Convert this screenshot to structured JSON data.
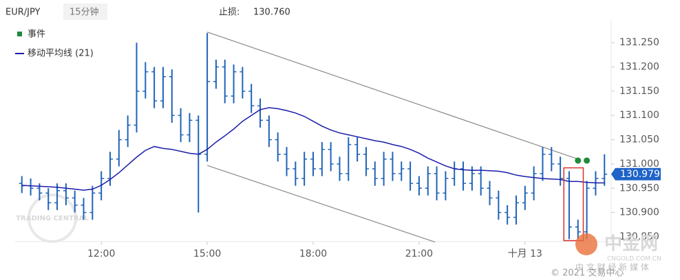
{
  "chart_data": {
    "type": "ohlc",
    "symbol": "EUR/JPY",
    "interval": "15分钟",
    "stop_loss_label": "止损:",
    "stop_loss": "130.760",
    "legend": {
      "events": "事件",
      "ma": "移动平均线 (21)"
    },
    "bar_color": "#1f63b8",
    "ma_color": "#1a1aa8",
    "event_color": "#1e8a3c",
    "channel_color": "#888888",
    "highlight_color": "#d9302c",
    "xlim": [
      9.56,
      26.44
    ],
    "ylim": [
      130.84,
      131.28
    ],
    "xticks": [
      {
        "value": 12,
        "label": "12:00"
      },
      {
        "value": 15,
        "label": "15:00"
      },
      {
        "value": 18,
        "label": "18:00"
      },
      {
        "value": 21,
        "label": "21:00"
      },
      {
        "value": 24,
        "label": "十月 13"
      }
    ],
    "yticks": [
      {
        "value": 130.85,
        "label": "130.850"
      },
      {
        "value": 130.9,
        "label": "130.900"
      },
      {
        "value": 130.95,
        "label": "130.950"
      },
      {
        "value": 131.0,
        "label": "131.000"
      },
      {
        "value": 131.05,
        "label": "131.050"
      },
      {
        "value": 131.1,
        "label": "131.100"
      },
      {
        "value": 131.15,
        "label": "131.150"
      },
      {
        "value": 131.2,
        "label": "131.200"
      },
      {
        "value": 131.25,
        "label": "131.250"
      }
    ],
    "x": [
      9.75,
      10,
      10.25,
      10.5,
      10.75,
      11,
      11.25,
      11.5,
      11.75,
      12,
      12.25,
      12.5,
      12.75,
      13,
      13.25,
      13.5,
      13.75,
      14,
      14.25,
      14.5,
      14.75,
      15,
      15.25,
      15.5,
      15.75,
      16,
      16.25,
      16.5,
      16.75,
      17,
      17.25,
      17.5,
      17.75,
      18,
      18.25,
      18.5,
      18.75,
      19,
      19.25,
      19.5,
      19.75,
      20,
      20.25,
      20.5,
      20.75,
      21,
      21.25,
      21.5,
      21.75,
      22,
      22.25,
      22.5,
      22.75,
      23,
      23.25,
      23.5,
      23.75,
      24,
      24.25,
      24.5,
      24.75,
      25,
      25.25,
      25.5,
      25.75,
      26,
      26.25
    ],
    "open": [
      130.96,
      130.955,
      130.95,
      130.94,
      130.92,
      130.945,
      130.93,
      130.915,
      130.9,
      130.94,
      130.97,
      131.01,
      131.05,
      131.08,
      131.15,
      131.19,
      131.13,
      131.18,
      131.1,
      131.06,
      131.09,
      131.02,
      131.17,
      131.2,
      131.14,
      131.19,
      131.15,
      131.12,
      131.09,
      131.05,
      131.02,
      130.99,
      130.97,
      131.01,
      130.99,
      131.03,
      131.0,
      130.98,
      131.04,
      131.02,
      130.99,
      130.97,
      131.01,
      130.98,
      130.99,
      130.96,
      130.95,
      130.98,
      130.94,
      130.97,
      130.99,
      130.96,
      130.98,
      130.95,
      130.93,
      130.9,
      130.89,
      130.92,
      130.94,
      130.98,
      131.02,
      131.0,
      130.97,
      130.87,
      130.86,
      130.95,
      130.97
    ],
    "high": [
      130.975,
      130.97,
      130.96,
      130.95,
      130.96,
      130.96,
      130.945,
      130.93,
      130.955,
      130.985,
      131.025,
      131.07,
      131.1,
      131.25,
      131.21,
      131.2,
      131.2,
      131.195,
      131.115,
      131.105,
      131.1,
      131.27,
      131.215,
      131.215,
      131.205,
      131.2,
      131.165,
      131.135,
      131.1,
      131.065,
      131.035,
      131.005,
      131.025,
      131.025,
      131.045,
      131.045,
      131.015,
      131.055,
      131.055,
      131.035,
      131.005,
      131.025,
      131.025,
      131.005,
      131.005,
      130.975,
      130.995,
      130.995,
      130.985,
      131.005,
      131.005,
      130.995,
      130.995,
      130.965,
      130.945,
      130.915,
      130.935,
      130.955,
      130.995,
      131.035,
      131.035,
      131.015,
      130.985,
      130.885,
      130.965,
      130.985,
      131.02
    ],
    "low": [
      130.94,
      130.935,
      130.925,
      130.905,
      130.905,
      130.915,
      130.9,
      130.885,
      130.885,
      130.925,
      130.955,
      130.995,
      131.035,
      131.065,
      131.135,
      131.115,
      131.115,
      131.085,
      131.045,
      131.045,
      130.9,
      131.005,
      131.155,
      131.125,
      131.125,
      131.135,
      131.105,
      131.075,
      131.035,
      131.005,
      130.975,
      130.955,
      130.955,
      130.975,
      130.975,
      130.985,
      130.965,
      130.965,
      131.005,
      130.975,
      130.955,
      130.955,
      130.965,
      130.965,
      130.945,
      130.935,
      130.935,
      130.925,
      130.925,
      130.955,
      130.945,
      130.945,
      130.935,
      130.915,
      130.885,
      130.875,
      130.875,
      130.905,
      130.925,
      130.965,
      130.985,
      130.955,
      130.845,
      130.845,
      130.845,
      130.935,
      130.955
    ],
    "close": [
      130.955,
      130.95,
      130.94,
      130.92,
      130.945,
      130.93,
      130.915,
      130.9,
      130.94,
      130.97,
      131.01,
      131.05,
      131.08,
      131.15,
      131.19,
      131.13,
      131.18,
      131.1,
      131.06,
      131.09,
      131.02,
      131.17,
      131.2,
      131.14,
      131.19,
      131.15,
      131.12,
      131.09,
      131.05,
      131.02,
      130.99,
      130.97,
      131.01,
      130.99,
      131.03,
      131.0,
      130.98,
      131.04,
      131.02,
      130.99,
      130.97,
      131.01,
      130.98,
      130.99,
      130.96,
      130.95,
      130.98,
      130.94,
      130.97,
      130.99,
      130.96,
      130.98,
      130.95,
      130.93,
      130.9,
      130.89,
      130.92,
      130.94,
      130.98,
      131.02,
      131.0,
      130.97,
      130.87,
      130.86,
      130.95,
      130.97,
      130.979
    ],
    "ma": [
      130.956,
      130.955,
      130.954,
      130.953,
      130.952,
      130.95,
      130.948,
      130.946,
      130.948,
      130.956,
      130.968,
      130.982,
      130.998,
      131.014,
      131.028,
      131.036,
      131.032,
      131.03,
      131.026,
      131.022,
      131.02,
      131.03,
      131.045,
      131.058,
      131.072,
      131.088,
      131.1,
      131.112,
      131.116,
      131.114,
      131.11,
      131.105,
      131.098,
      131.088,
      131.078,
      131.07,
      131.064,
      131.06,
      131.056,
      131.052,
      131.048,
      131.045,
      131.04,
      131.036,
      131.03,
      131.022,
      131.012,
      131.004,
      130.996,
      130.99,
      130.988,
      130.987,
      130.987,
      130.986,
      130.985,
      130.982,
      130.977,
      130.974,
      130.972,
      130.97,
      130.969,
      130.968,
      130.964,
      130.964,
      130.962,
      130.961,
      130.961
    ],
    "last": 130.979,
    "channels": [
      {
        "x": [
          15.0,
          25.5
        ],
        "y": [
          131.272,
          131.01
        ]
      },
      {
        "x": [
          15.0,
          21.45
        ],
        "y": [
          130.997,
          130.839
        ]
      }
    ],
    "events": {
      "x": [
        25.5,
        25.75
      ],
      "y": [
        131.007,
        131.007
      ]
    },
    "highlight": {
      "x": [
        25.1,
        25.65
      ],
      "y": [
        130.842,
        130.992
      ]
    },
    "watermarks": [
      "TRADING CENTRAL",
      "中金网",
      "CNGOLD.COM.CN",
      "中 文 财 经 新 媒 体",
      "© 2021 交易中心"
    ]
  }
}
